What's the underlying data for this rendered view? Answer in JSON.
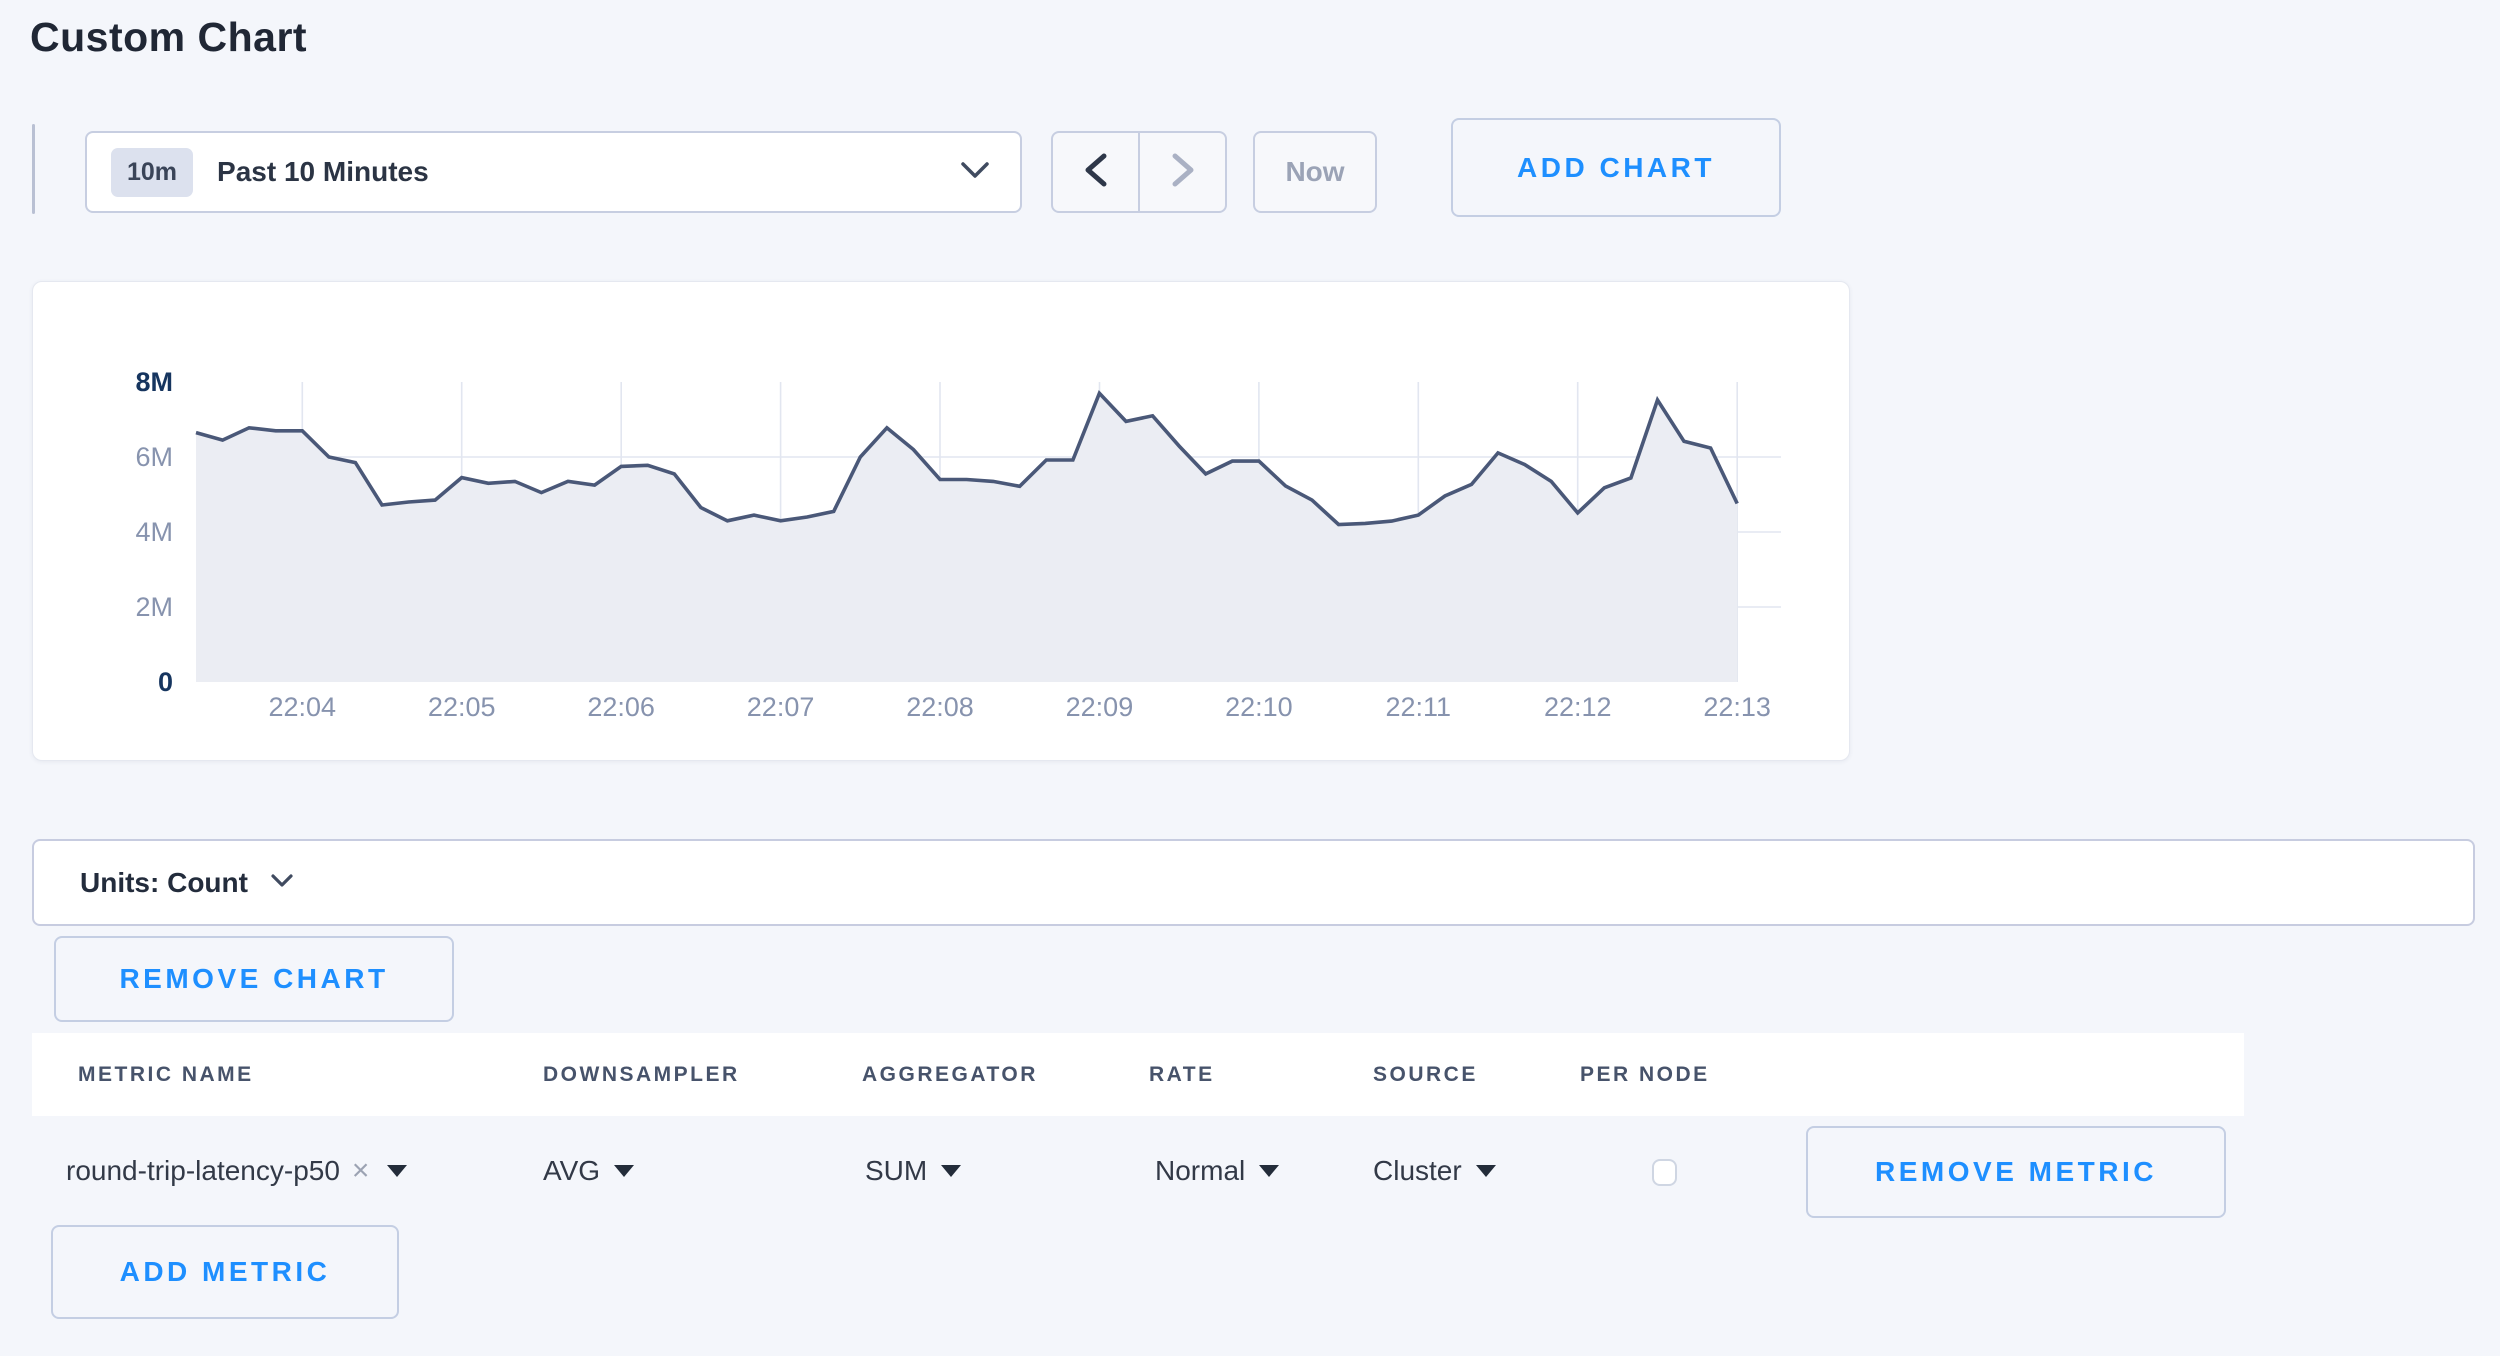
{
  "page": {
    "title": "Custom Chart"
  },
  "toolbar": {
    "range_badge": "10m",
    "range_label": "Past 10 Minutes",
    "prev_label": "previous time window",
    "next_label": "next time window",
    "now_label": "Now",
    "add_chart_label": "ADD CHART"
  },
  "colors": {
    "accent_blue": "#1e8fff",
    "line": "#4a5878",
    "fill": "#ebedf3",
    "grid": "#e2e6f0",
    "axis_label": "#8793ae",
    "axis_label_major": "#16355f"
  },
  "chart_data": {
    "type": "area",
    "title": "",
    "xlabel": "",
    "ylabel": "",
    "unit": "count",
    "legend": "none",
    "grid": true,
    "ylim": [
      0,
      8000000
    ],
    "y_tick_labels": [
      "8M",
      "6M",
      "4M",
      "2M",
      "0"
    ],
    "y_tick_values": [
      8,
      6,
      4,
      2,
      0
    ],
    "x_tick_labels": [
      "22:04",
      "22:05",
      "22:06",
      "22:07",
      "22:08",
      "22:09",
      "22:10",
      "22:11",
      "22:12",
      "22:13"
    ],
    "start_time": "22:03:20",
    "interval_seconds": 10,
    "values_millions": [
      6.65,
      6.45,
      6.78,
      6.7,
      6.7,
      6.0,
      5.85,
      4.72,
      4.8,
      4.85,
      5.45,
      5.3,
      5.35,
      5.05,
      5.35,
      5.25,
      5.75,
      5.78,
      5.55,
      4.65,
      4.3,
      4.45,
      4.3,
      4.4,
      4.55,
      6.0,
      6.78,
      6.2,
      5.4,
      5.4,
      5.35,
      5.22,
      5.92,
      5.92,
      7.7,
      6.95,
      7.1,
      6.29,
      5.55,
      5.89,
      5.89,
      5.23,
      4.85,
      4.2,
      4.23,
      4.29,
      4.45,
      4.96,
      5.27,
      6.11,
      5.8,
      5.35,
      4.51,
      5.18,
      5.44,
      7.52,
      6.42,
      6.24,
      4.76
    ]
  },
  "units_bar": {
    "label": "Units: Count"
  },
  "chart_actions": {
    "remove_chart_label": "REMOVE CHART"
  },
  "metrics_table": {
    "headers": [
      "METRIC NAME",
      "DOWNSAMPLER",
      "AGGREGATOR",
      "RATE",
      "SOURCE",
      "PER NODE"
    ],
    "rows": [
      {
        "metric_name": "round-trip-latency-p50",
        "remove_tag_icon": "close-x",
        "downsampler": "AVG",
        "aggregator": "SUM",
        "rate": "Normal",
        "source": "Cluster",
        "per_node_checked": false,
        "remove_label": "REMOVE METRIC"
      }
    ],
    "add_metric_label": "ADD METRIC"
  }
}
